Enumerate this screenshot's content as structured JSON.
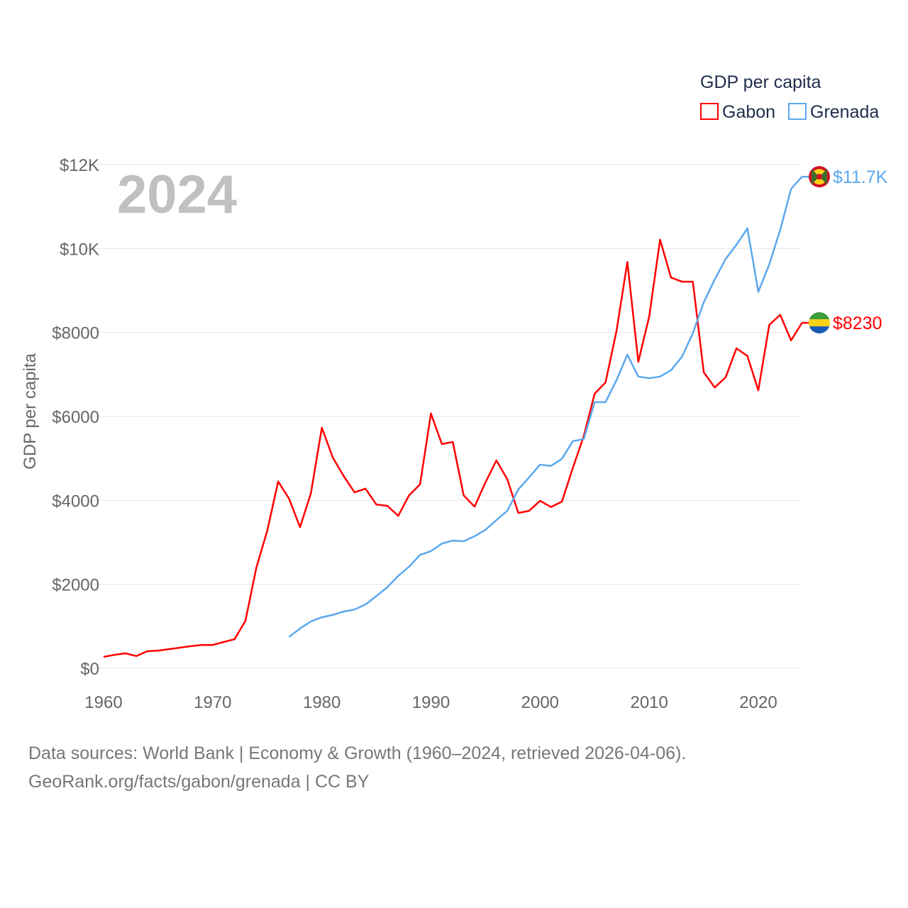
{
  "chart_data": {
    "type": "line",
    "title": "GDP per capita",
    "year_label": "2024",
    "xlabel": "",
    "ylabel": "GDP per capita",
    "xlim": [
      1960,
      2024
    ],
    "ylim": [
      0,
      12000
    ],
    "grid": true,
    "legend_placement": "top-right",
    "x_ticks": [
      1960,
      1970,
      1980,
      1990,
      2000,
      2010,
      2020
    ],
    "x_tick_labels": [
      "1960",
      "1970",
      "1980",
      "1990",
      "2000",
      "2010",
      "2020"
    ],
    "y_ticks": [
      0,
      2000,
      4000,
      6000,
      8000,
      10000,
      12000
    ],
    "y_tick_labels": [
      "$0",
      "$2000",
      "$4000",
      "$6000",
      "$8000",
      "$10K",
      "$12K"
    ],
    "series": [
      {
        "name": "Gabon",
        "color": "#ff0000",
        "end_label": "$8230",
        "flag": "gabon-flag",
        "start_year": 1960,
        "values": [
          270,
          320,
          355,
          290,
          405,
          420,
          455,
          490,
          525,
          555,
          555,
          625,
          690,
          1130,
          2400,
          3280,
          4450,
          4040,
          3360,
          4170,
          5730,
          5020,
          4580,
          4190,
          4280,
          3900,
          3870,
          3630,
          4120,
          4380,
          6070,
          5340,
          5390,
          4120,
          3850,
          4430,
          4950,
          4500,
          3700,
          3750,
          3990,
          3840,
          3970,
          4770,
          5530,
          6540,
          6810,
          8030,
          9680,
          7300,
          8380,
          10210,
          9310,
          9210,
          9210,
          7050,
          6690,
          6930,
          7620,
          7440,
          6620,
          8180,
          8420,
          7810,
          8230
        ]
      },
      {
        "name": "Grenada",
        "color": "#5ba8ee",
        "end_label": "$11.7K",
        "flag": "grenada-flag",
        "start_year": 1977,
        "values": [
          745,
          945,
          1115,
          1215,
          1270,
          1350,
          1400,
          1520,
          1720,
          1930,
          2200,
          2420,
          2700,
          2790,
          2970,
          3040,
          3025,
          3145,
          3300,
          3530,
          3750,
          4260,
          4550,
          4850,
          4820,
          4990,
          5410,
          5460,
          6340,
          6340,
          6860,
          7470,
          6950,
          6910,
          6950,
          7100,
          7420,
          7980,
          8720,
          9260,
          9750,
          10090,
          10480,
          8970,
          9620,
          10440,
          11420,
          11710
        ]
      }
    ]
  },
  "footer": {
    "line1": "Data sources: World Bank | Economy & Growth (1960–2024, retrieved 2026-04-06).",
    "line2": "GeoRank.org/facts/gabon/grenada | CC BY"
  }
}
